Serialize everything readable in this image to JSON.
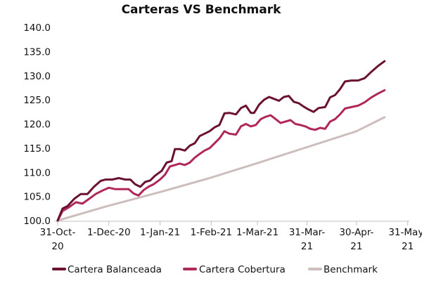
{
  "chart_data": {
    "type": "line",
    "title": "Carteras VS Benchmark",
    "xlabel": "",
    "ylabel": "",
    "grid": false,
    "legend_position": "bottom",
    "ylim": [
      100,
      140
    ],
    "y_ticks": [
      "100.0",
      "105.0",
      "110.0",
      "115.0",
      "120.0",
      "125.0",
      "130.0",
      "135.0",
      "140.0"
    ],
    "x_range": [
      "2020-10-31",
      "2021-06-01"
    ],
    "x_ticks": [
      {
        "date": "2020-10-31",
        "lines": [
          "31-Oct-",
          "20"
        ]
      },
      {
        "date": "2020-12-01",
        "lines": [
          "1-Dec-20"
        ]
      },
      {
        "date": "2021-01-01",
        "lines": [
          "1-Jan-21"
        ]
      },
      {
        "date": "2021-02-01",
        "lines": [
          "1-Feb-21"
        ]
      },
      {
        "date": "2021-03-01",
        "lines": [
          "1-Mar-21"
        ]
      },
      {
        "date": "2021-03-31",
        "lines": [
          "31-Mar-",
          "21"
        ]
      },
      {
        "date": "2021-04-30",
        "lines": [
          "30-Apr-",
          "21"
        ]
      },
      {
        "date": "2021-05-31",
        "lines": [
          "31-May-",
          "21"
        ]
      }
    ],
    "series": [
      {
        "name": "Cartera Balanceada",
        "color": "#6b1232",
        "points": [
          [
            "2020-10-31",
            100.0
          ],
          [
            "2020-11-03",
            102.5
          ],
          [
            "2020-11-06",
            103.0
          ],
          [
            "2020-11-10",
            104.5
          ],
          [
            "2020-11-14",
            105.5
          ],
          [
            "2020-11-18",
            105.5
          ],
          [
            "2020-11-22",
            107.0
          ],
          [
            "2020-11-26",
            108.2
          ],
          [
            "2020-11-29",
            108.5
          ],
          [
            "2020-12-03",
            108.5
          ],
          [
            "2020-12-07",
            108.8
          ],
          [
            "2020-12-11",
            108.5
          ],
          [
            "2020-12-14",
            108.5
          ],
          [
            "2020-12-17",
            107.5
          ],
          [
            "2020-12-20",
            107.0
          ],
          [
            "2020-12-23",
            108.0
          ],
          [
            "2020-12-26",
            108.3
          ],
          [
            "2020-12-29",
            109.3
          ],
          [
            "2021-01-02",
            110.3
          ],
          [
            "2021-01-05",
            112.0
          ],
          [
            "2021-01-08",
            112.3
          ],
          [
            "2021-01-10",
            114.8
          ],
          [
            "2021-01-13",
            114.8
          ],
          [
            "2021-01-16",
            114.5
          ],
          [
            "2021-01-19",
            115.5
          ],
          [
            "2021-01-22",
            116.0
          ],
          [
            "2021-01-25",
            117.5
          ],
          [
            "2021-01-28",
            118.0
          ],
          [
            "2021-01-31",
            118.5
          ],
          [
            "2021-02-03",
            119.3
          ],
          [
            "2021-02-06",
            119.8
          ],
          [
            "2021-02-09",
            122.2
          ],
          [
            "2021-02-12",
            122.3
          ],
          [
            "2021-02-16",
            122.0
          ],
          [
            "2021-02-19",
            123.3
          ],
          [
            "2021-02-22",
            123.8
          ],
          [
            "2021-02-25",
            122.3
          ],
          [
            "2021-02-27",
            122.3
          ],
          [
            "2021-03-02",
            124.0
          ],
          [
            "2021-03-05",
            125.0
          ],
          [
            "2021-03-08",
            125.6
          ],
          [
            "2021-03-11",
            125.2
          ],
          [
            "2021-03-14",
            124.8
          ],
          [
            "2021-03-17",
            125.6
          ],
          [
            "2021-03-20",
            125.8
          ],
          [
            "2021-03-23",
            124.6
          ],
          [
            "2021-03-26",
            124.3
          ],
          [
            "2021-03-29",
            123.6
          ],
          [
            "2021-04-01",
            123.0
          ],
          [
            "2021-04-04",
            122.5
          ],
          [
            "2021-04-07",
            123.3
          ],
          [
            "2021-04-11",
            123.5
          ],
          [
            "2021-04-14",
            125.5
          ],
          [
            "2021-04-17",
            126.0
          ],
          [
            "2021-04-20",
            127.2
          ],
          [
            "2021-04-23",
            128.8
          ],
          [
            "2021-04-27",
            129.0
          ],
          [
            "2021-05-01",
            129.0
          ],
          [
            "2021-05-05",
            129.5
          ],
          [
            "2021-05-09",
            130.8
          ],
          [
            "2021-05-13",
            132.0
          ],
          [
            "2021-05-17",
            133.0
          ]
        ]
      },
      {
        "name": "Cartera Cobertura",
        "color": "#b0285a",
        "points": [
          [
            "2020-10-31",
            100.0
          ],
          [
            "2020-11-03",
            102.0
          ],
          [
            "2020-11-07",
            102.8
          ],
          [
            "2020-11-11",
            103.8
          ],
          [
            "2020-11-15",
            103.5
          ],
          [
            "2020-11-19",
            104.5
          ],
          [
            "2020-11-23",
            105.5
          ],
          [
            "2020-11-27",
            106.2
          ],
          [
            "2020-12-01",
            106.8
          ],
          [
            "2020-12-05",
            106.5
          ],
          [
            "2020-12-09",
            106.5
          ],
          [
            "2020-12-13",
            106.5
          ],
          [
            "2020-12-16",
            105.6
          ],
          [
            "2020-12-19",
            105.2
          ],
          [
            "2020-12-22",
            106.3
          ],
          [
            "2020-12-25",
            107.0
          ],
          [
            "2020-12-28",
            107.5
          ],
          [
            "2021-01-01",
            108.5
          ],
          [
            "2021-01-04",
            109.5
          ],
          [
            "2021-01-07",
            111.2
          ],
          [
            "2021-01-10",
            111.5
          ],
          [
            "2021-01-13",
            111.8
          ],
          [
            "2021-01-16",
            111.5
          ],
          [
            "2021-01-19",
            112.0
          ],
          [
            "2021-01-22",
            113.0
          ],
          [
            "2021-01-25",
            113.8
          ],
          [
            "2021-01-28",
            114.5
          ],
          [
            "2021-01-31",
            115.0
          ],
          [
            "2021-02-03",
            116.0
          ],
          [
            "2021-02-06",
            117.0
          ],
          [
            "2021-02-09",
            118.5
          ],
          [
            "2021-02-12",
            118.0
          ],
          [
            "2021-02-16",
            117.8
          ],
          [
            "2021-02-19",
            119.5
          ],
          [
            "2021-02-22",
            120.0
          ],
          [
            "2021-02-25",
            119.5
          ],
          [
            "2021-02-28",
            119.8
          ],
          [
            "2021-03-03",
            121.0
          ],
          [
            "2021-03-06",
            121.5
          ],
          [
            "2021-03-09",
            121.8
          ],
          [
            "2021-03-12",
            121.0
          ],
          [
            "2021-03-15",
            120.2
          ],
          [
            "2021-03-18",
            120.5
          ],
          [
            "2021-03-21",
            120.8
          ],
          [
            "2021-03-24",
            120.0
          ],
          [
            "2021-03-27",
            119.8
          ],
          [
            "2021-03-30",
            119.5
          ],
          [
            "2021-04-02",
            119.0
          ],
          [
            "2021-04-05",
            118.8
          ],
          [
            "2021-04-08",
            119.2
          ],
          [
            "2021-04-11",
            119.0
          ],
          [
            "2021-04-14",
            120.5
          ],
          [
            "2021-04-17",
            121.0
          ],
          [
            "2021-04-20",
            122.0
          ],
          [
            "2021-04-23",
            123.2
          ],
          [
            "2021-04-27",
            123.5
          ],
          [
            "2021-05-01",
            123.8
          ],
          [
            "2021-05-05",
            124.5
          ],
          [
            "2021-05-09",
            125.5
          ],
          [
            "2021-05-13",
            126.3
          ],
          [
            "2021-05-17",
            127.0
          ]
        ]
      },
      {
        "name": "Benchmark",
        "color": "#cdbdbd",
        "points": [
          [
            "2020-10-31",
            100.0
          ],
          [
            "2020-11-30",
            103.0
          ],
          [
            "2020-12-31",
            105.8
          ],
          [
            "2021-01-31",
            108.8
          ],
          [
            "2021-02-28",
            111.8
          ],
          [
            "2021-03-31",
            115.2
          ],
          [
            "2021-04-30",
            118.5
          ],
          [
            "2021-05-17",
            121.4
          ]
        ]
      }
    ]
  }
}
